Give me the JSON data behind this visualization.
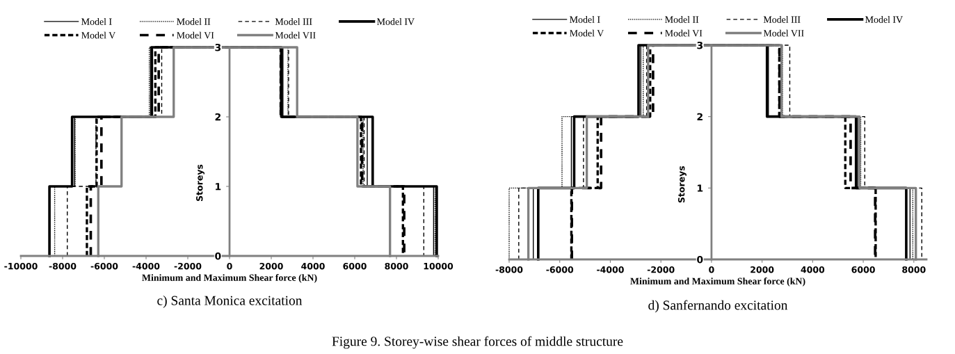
{
  "chart_data": [
    {
      "type": "line",
      "xlabel": "Minimum and Maximum Shear force (kN)",
      "ylabel": "Storeys",
      "legend": "top",
      "grid": false,
      "marker": "none",
      "xlim": [
        -10000,
        10000
      ],
      "xticks": [
        -10000,
        -8000,
        -6000,
        -4000,
        -2000,
        0,
        2000,
        4000,
        6000,
        8000,
        10000
      ],
      "ylim": [
        0,
        3
      ],
      "yticks": [
        0,
        1,
        2,
        3
      ],
      "annotations": [
        "c) Santa Monica excitation",
        "Figure 9. Storey-wise shear forces of middle structure"
      ],
      "series": [
        {
          "name": "Model I",
          "color": "#000000",
          "line_style": "solid",
          "x": [
            -8630,
            -8630,
            -7430,
            -7430,
            -3685,
            -3685,
            2560,
            2560,
            6600,
            6600,
            9780,
            9780
          ],
          "values": [
            0,
            1,
            1,
            2,
            2,
            3,
            3,
            2,
            2,
            1,
            1,
            0
          ]
        },
        {
          "name": "Model II",
          "color": "#000000",
          "line_style": "dotted",
          "x": [
            -8380,
            -8380,
            -7400,
            -7400,
            -3845,
            -3845,
            2800,
            2800,
            6400,
            6400,
            9850,
            9850
          ],
          "values": [
            0,
            1,
            1,
            2,
            2,
            3,
            3,
            2,
            2,
            1,
            1,
            0
          ]
        },
        {
          "name": "Model III",
          "color": "#000000",
          "line_style": "dashed",
          "x": [
            -7775,
            -7775,
            -6400,
            -6400,
            -3250,
            -3250,
            2830,
            2830,
            6450,
            6450,
            9310,
            9310
          ],
          "values": [
            0,
            1,
            1,
            2,
            2,
            3,
            3,
            2,
            2,
            1,
            1,
            0
          ]
        },
        {
          "name": "Model IV",
          "color": "#000000",
          "line_style": "solid",
          "x": [
            -8630,
            -8630,
            -7545,
            -7545,
            -3745,
            -3745,
            2480,
            2480,
            6860,
            6860,
            9930,
            9930
          ],
          "values": [
            0,
            1,
            1,
            2,
            2,
            3,
            3,
            2,
            2,
            1,
            1,
            0
          ]
        },
        {
          "name": "Model V",
          "color": "#000000",
          "line_style": "dashed",
          "x": [
            -6835,
            -6835,
            -6370,
            -6370,
            -3555,
            -3555,
            2450,
            2450,
            6300,
            6300,
            8310,
            8310
          ],
          "values": [
            0,
            1,
            1,
            2,
            2,
            3,
            3,
            2,
            2,
            1,
            1,
            0
          ]
        },
        {
          "name": "Model VI",
          "color": "#000000",
          "line_style": "dashed",
          "x": [
            -6650,
            -6650,
            -6140,
            -6140,
            -3395,
            -3395,
            2460,
            2460,
            6350,
            6350,
            8370,
            8370
          ],
          "values": [
            0,
            1,
            1,
            2,
            2,
            3,
            3,
            2,
            2,
            1,
            1,
            0
          ]
        },
        {
          "name": "Model VII",
          "color": "#808080",
          "line_style": "solid",
          "x": [
            -6290,
            -6290,
            -5175,
            -5175,
            -2675,
            -2675,
            3240,
            3240,
            6130,
            6130,
            7690,
            7690
          ],
          "values": [
            0,
            1,
            1,
            2,
            2,
            3,
            3,
            2,
            2,
            1,
            1,
            0
          ]
        }
      ]
    },
    {
      "type": "line",
      "xlabel": "Minimum and Maximum Shear force (kN)",
      "ylabel": "Storeys",
      "legend": "top",
      "grid": false,
      "marker": "none",
      "xlim": [
        -8000,
        8500
      ],
      "xticks": [
        -8000,
        -6000,
        -4000,
        -2000,
        0,
        2000,
        4000,
        6000,
        8000
      ],
      "ylim": [
        0,
        3
      ],
      "yticks": [
        0,
        1,
        2,
        3
      ],
      "annotations": [
        "d) Sanfernando excitation"
      ],
      "series": [
        {
          "name": "Model I",
          "color": "#000000",
          "line_style": "solid",
          "x": [
            -7045,
            -7045,
            -5540,
            -5540,
            -2795,
            -2795,
            2250,
            2250,
            5775,
            5775,
            7850,
            7850
          ],
          "values": [
            0,
            1,
            1,
            2,
            2,
            3,
            3,
            2,
            2,
            1,
            1,
            0
          ]
        },
        {
          "name": "Model II",
          "color": "#000000",
          "line_style": "dotted",
          "x": [
            -8000,
            -8000,
            -5910,
            -5910,
            -2700,
            -2700,
            2805,
            2805,
            5900,
            5900,
            7960,
            7960
          ],
          "values": [
            0,
            1,
            1,
            2,
            2,
            3,
            3,
            2,
            2,
            1,
            1,
            0
          ]
        },
        {
          "name": "Model III",
          "color": "#000000",
          "line_style": "dashed",
          "x": [
            -7620,
            -7620,
            -5060,
            -5060,
            -2565,
            -2565,
            3095,
            3095,
            6060,
            6060,
            8315,
            8315
          ],
          "values": [
            0,
            1,
            1,
            2,
            2,
            3,
            3,
            2,
            2,
            1,
            1,
            0
          ]
        },
        {
          "name": "Model IV",
          "color": "#000000",
          "line_style": "solid",
          "x": [
            -6850,
            -6850,
            -5430,
            -5430,
            -2885,
            -2885,
            2195,
            2195,
            5715,
            5715,
            7700,
            7700
          ],
          "values": [
            0,
            1,
            1,
            2,
            2,
            3,
            3,
            2,
            2,
            1,
            1,
            0
          ]
        },
        {
          "name": "Model V",
          "color": "#000000",
          "line_style": "dashed",
          "x": [
            -5540,
            -5540,
            -4500,
            -4500,
            -2425,
            -2425,
            2680,
            2680,
            5290,
            5290,
            6490,
            6490
          ],
          "values": [
            0,
            1,
            1,
            2,
            2,
            3,
            3,
            2,
            2,
            1,
            1,
            0
          ]
        },
        {
          "name": "Model VI",
          "color": "#000000",
          "line_style": "dashed",
          "x": [
            -5520,
            -5520,
            -4365,
            -4365,
            -2310,
            -2310,
            2690,
            2690,
            5500,
            5500,
            6470,
            6470
          ],
          "values": [
            0,
            1,
            1,
            2,
            2,
            3,
            3,
            2,
            2,
            1,
            1,
            0
          ]
        },
        {
          "name": "Model VII",
          "color": "#808080",
          "line_style": "solid",
          "x": [
            -7240,
            -7240,
            -4930,
            -4930,
            -2505,
            -2505,
            2770,
            2770,
            5855,
            5855,
            8080,
            8080
          ],
          "values": [
            0,
            1,
            1,
            2,
            2,
            3,
            3,
            2,
            2,
            1,
            1,
            0
          ]
        }
      ]
    }
  ]
}
